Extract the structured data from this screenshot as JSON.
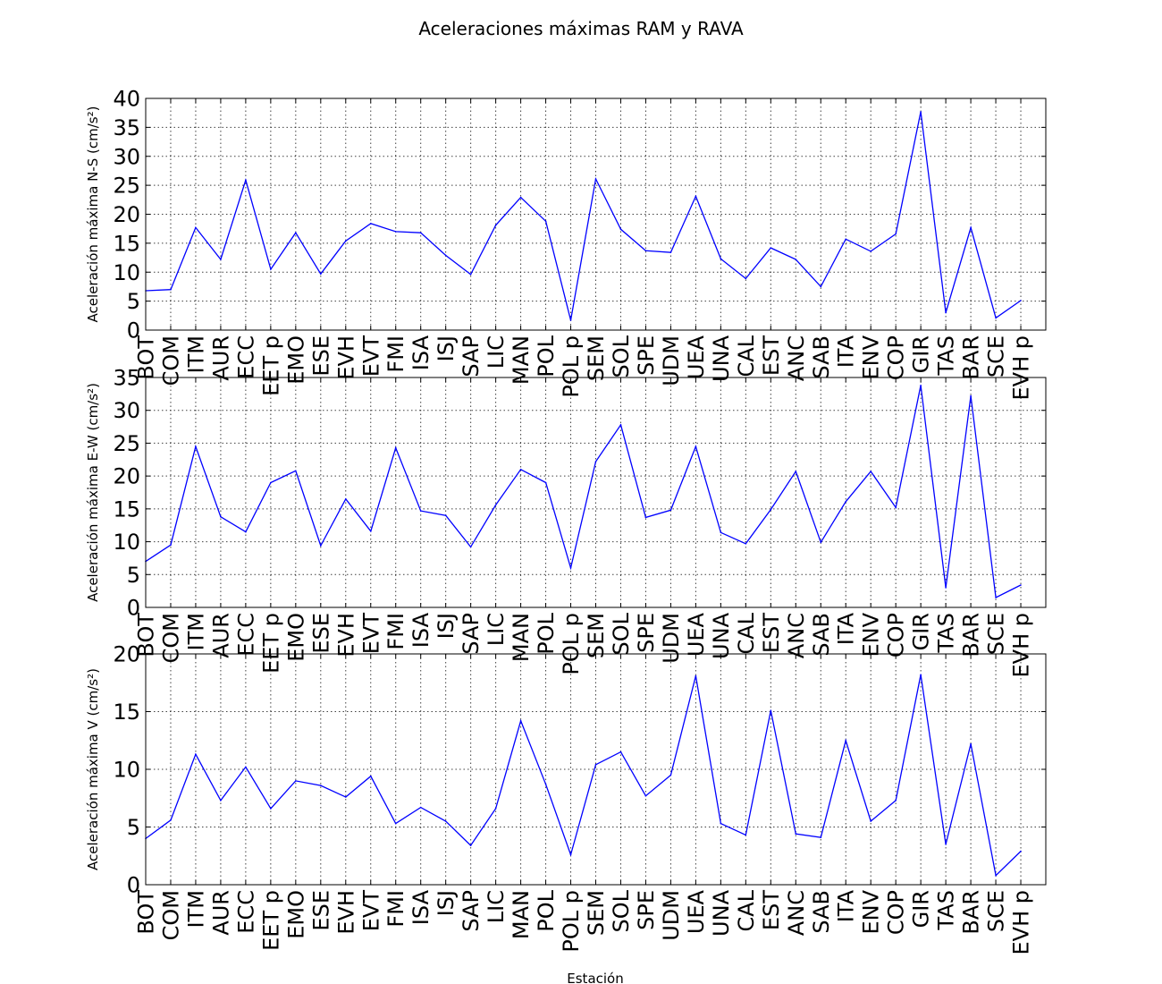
{
  "figure": {
    "title": "Aceleraciones máximas RAM y RAVA",
    "xlabel": "Estación",
    "line_color": "#0000ff"
  },
  "chart_data": [
    {
      "type": "line",
      "ylabel": "Aceleración máxima N-S (cm/s²)",
      "ylim": [
        0,
        40
      ],
      "yticks": [
        0,
        5,
        10,
        15,
        20,
        25,
        30,
        35,
        40
      ],
      "grid": true,
      "categories": [
        "BOT",
        "COM",
        "ITM",
        "AUR",
        "ECC",
        "EET p",
        "EMO",
        "ESE",
        "EVH",
        "EVT",
        "FMI",
        "ISA",
        "ISJ",
        "SAP",
        "LIC",
        "MAN",
        "POL",
        "POL p",
        "SEM",
        "SOL",
        "SPE",
        "UDM",
        "UEA",
        "UNA",
        "CAL",
        "EST",
        "ANC",
        "SAB",
        "ITA",
        "ENV",
        "COP",
        "GIR",
        "TAS",
        "BAR",
        "SCE",
        "EVH p"
      ],
      "series": [
        {
          "values": [
            6.8,
            7.0,
            17.7,
            12.2,
            25.9,
            10.5,
            16.8,
            9.7,
            15.4,
            18.4,
            17.0,
            16.8,
            12.9,
            9.6,
            18.1,
            22.9,
            18.8,
            1.7,
            26.1,
            17.4,
            13.7,
            13.4,
            23.1,
            12.3,
            8.9,
            14.2,
            12.2,
            7.5,
            15.7,
            13.6,
            16.6,
            37.7,
            3.0,
            17.7,
            2.1,
            5.1
          ]
        }
      ]
    },
    {
      "type": "line",
      "ylabel": "Aceleración máxima E-W (cm/s²)",
      "ylim": [
        0,
        35
      ],
      "yticks": [
        0,
        5,
        10,
        15,
        20,
        25,
        30,
        35
      ],
      "grid": true,
      "categories": [
        "BOT",
        "COM",
        "ITM",
        "AUR",
        "ECC",
        "EET p",
        "EMO",
        "ESE",
        "EVH",
        "EVT",
        "FMI",
        "ISA",
        "ISJ",
        "SAP",
        "LIC",
        "MAN",
        "POL",
        "POL p",
        "SEM",
        "SOL",
        "SPE",
        "UDM",
        "UEA",
        "UNA",
        "CAL",
        "EST",
        "ANC",
        "SAB",
        "ITA",
        "ENV",
        "COP",
        "GIR",
        "TAS",
        "BAR",
        "SCE",
        "EVH p"
      ],
      "series": [
        {
          "values": [
            7.0,
            9.5,
            24.5,
            13.8,
            11.5,
            19.0,
            20.8,
            9.4,
            16.5,
            11.6,
            24.3,
            14.7,
            14.0,
            9.2,
            15.6,
            21.0,
            19.0,
            6.0,
            22.2,
            27.8,
            13.7,
            14.8,
            24.5,
            11.4,
            9.7,
            14.9,
            20.7,
            9.9,
            16.1,
            20.7,
            15.2,
            33.8,
            3.0,
            32.2,
            1.5,
            3.4
          ]
        }
      ]
    },
    {
      "type": "line",
      "ylabel": "Aceleración máxima V (cm/s²)",
      "ylim": [
        0,
        20
      ],
      "yticks": [
        0,
        5,
        10,
        15,
        20
      ],
      "grid": true,
      "categories": [
        "BOT",
        "COM",
        "ITM",
        "AUR",
        "ECC",
        "EET p",
        "EMO",
        "ESE",
        "EVH",
        "EVT",
        "FMI",
        "ISA",
        "ISJ",
        "SAP",
        "LIC",
        "MAN",
        "POL",
        "POL p",
        "SEM",
        "SOL",
        "SPE",
        "UDM",
        "UEA",
        "UNA",
        "CAL",
        "EST",
        "ANC",
        "SAB",
        "ITA",
        "ENV",
        "COP",
        "GIR",
        "TAS",
        "BAR",
        "SCE",
        "EVH p"
      ],
      "series": [
        {
          "values": [
            4.0,
            5.6,
            11.3,
            7.3,
            10.2,
            6.6,
            9.0,
            8.6,
            7.6,
            9.4,
            5.3,
            6.7,
            5.5,
            3.4,
            6.6,
            14.2,
            8.7,
            2.6,
            10.4,
            11.5,
            7.7,
            9.5,
            18.1,
            5.3,
            4.3,
            15.1,
            4.4,
            4.1,
            12.5,
            5.5,
            7.3,
            18.2,
            3.5,
            12.2,
            0.8,
            2.9
          ]
        }
      ]
    }
  ]
}
